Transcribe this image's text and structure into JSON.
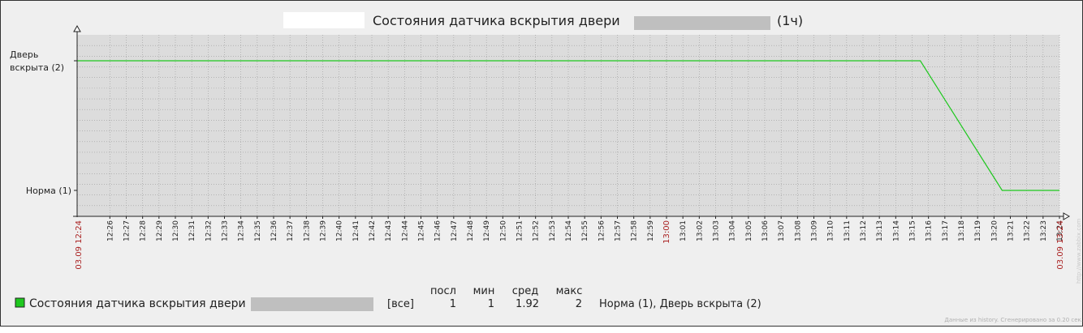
{
  "chart_data": {
    "type": "line",
    "title_prefix": "Состояния датчика вскрытия двери",
    "title_suffix": "(1ч)",
    "y_ticks": [
      {
        "value": 2,
        "label_lines": [
          "Дверь",
          "вскрыта (2)"
        ]
      },
      {
        "value": 1,
        "label_lines": [
          "Норма (1)"
        ]
      }
    ],
    "x_ticks": [
      "12:26",
      "12:27",
      "12:28",
      "12:29",
      "12:30",
      "12:31",
      "12:32",
      "12:33",
      "12:34",
      "12:35",
      "12:36",
      "12:37",
      "12:38",
      "12:39",
      "12:40",
      "12:41",
      "12:42",
      "12:43",
      "12:44",
      "12:45",
      "12:46",
      "12:47",
      "12:48",
      "12:49",
      "12:50",
      "12:51",
      "12:52",
      "12:53",
      "12:54",
      "12:55",
      "12:56",
      "12:57",
      "12:58",
      "12:59",
      "13:00",
      "13:01",
      "13:02",
      "13:03",
      "13:04",
      "13:05",
      "13:06",
      "13:07",
      "13:08",
      "13:09",
      "13:10",
      "13:11",
      "13:12",
      "13:13",
      "13:14",
      "13:15",
      "13:16",
      "13:17",
      "13:18",
      "13:19",
      "13:20",
      "13:21",
      "13:22",
      "13:23",
      "13:24"
    ],
    "x_start_label": "03.09 12:24",
    "x_end_label": "03.09 13:24",
    "x_range": [
      "12:24",
      "13:24"
    ],
    "ylim": [
      0.8,
      2.2
    ],
    "grid": true,
    "series": [
      {
        "color": "#1ec81e",
        "points": [
          {
            "x": "12:24",
            "y": 2
          },
          {
            "x": "13:15.5",
            "y": 2
          },
          {
            "x": "13:20.5",
            "y": 1
          },
          {
            "x": "13:24",
            "y": 1
          }
        ]
      }
    ],
    "legend": {
      "headers": [
        "посл",
        "мин",
        "сред",
        "макс"
      ],
      "name": "Состояния датчика вскрытия двери",
      "func": "[все]",
      "last": "1",
      "min": "1",
      "avg": "1.92",
      "max": "2",
      "mapping": "Норма (1), Дверь вскрыта (2)"
    },
    "footer": "Данные из history. Сгенерировано за 0.20 сек.",
    "watermark": "http://www.zabbix.com"
  }
}
